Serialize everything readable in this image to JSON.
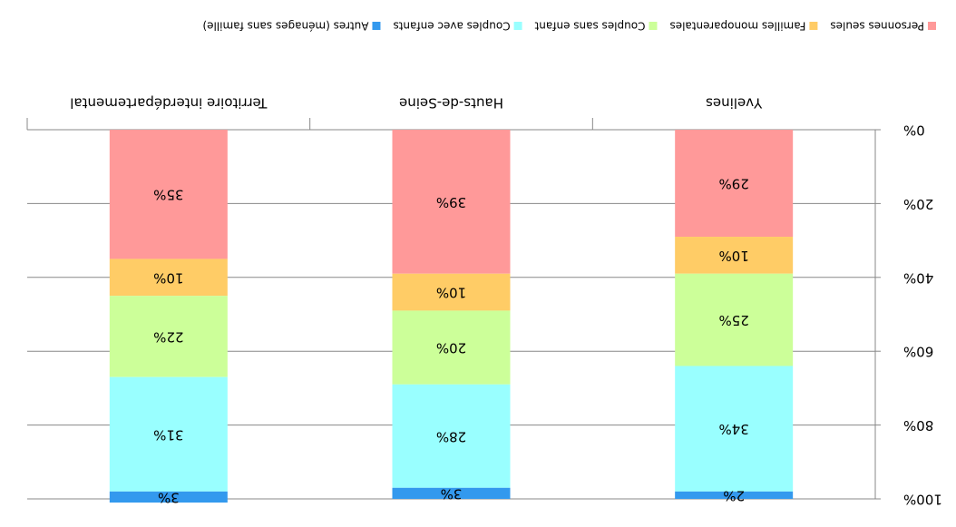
{
  "chart_data": {
    "type": "stacked_bar",
    "categories": [
      "Yvelines",
      "Hauts-de-Seine",
      "Territoire interdépartemental"
    ],
    "series": [
      {
        "name": "Personnes seules",
        "color": "#ff9999",
        "values": [
          29,
          39,
          35
        ],
        "value_labels": [
          "29%",
          "39%",
          "35%"
        ]
      },
      {
        "name": "Familles monoparentales",
        "color": "#ffcc66",
        "values": [
          10,
          10,
          10
        ],
        "value_labels": [
          "10%",
          "10%",
          "10%"
        ]
      },
      {
        "name": "Couples sans enfant",
        "color": "#ccff99",
        "values": [
          25,
          20,
          22
        ],
        "value_labels": [
          "25%",
          "20%",
          "22%"
        ]
      },
      {
        "name": "Couples avec enfants",
        "color": "#99ffff",
        "values": [
          34,
          28,
          31
        ],
        "value_labels": [
          "34%",
          "28%",
          "31%"
        ]
      },
      {
        "name": "Autres (ménages sans famille)",
        "color": "#3399ee",
        "values": [
          2,
          3,
          3
        ],
        "value_labels": [
          "2%",
          "3%",
          "3%"
        ]
      }
    ],
    "ylim": [
      0,
      100
    ],
    "yticks": [
      {
        "value": 0,
        "label": "0%"
      },
      {
        "value": 20,
        "label": "20%"
      },
      {
        "value": 40,
        "label": "40%"
      },
      {
        "value": 60,
        "label": "60%"
      },
      {
        "value": 80,
        "label": "80%"
      },
      {
        "value": 100,
        "label": "100%"
      }
    ],
    "grid": true,
    "legend": "bottom"
  }
}
